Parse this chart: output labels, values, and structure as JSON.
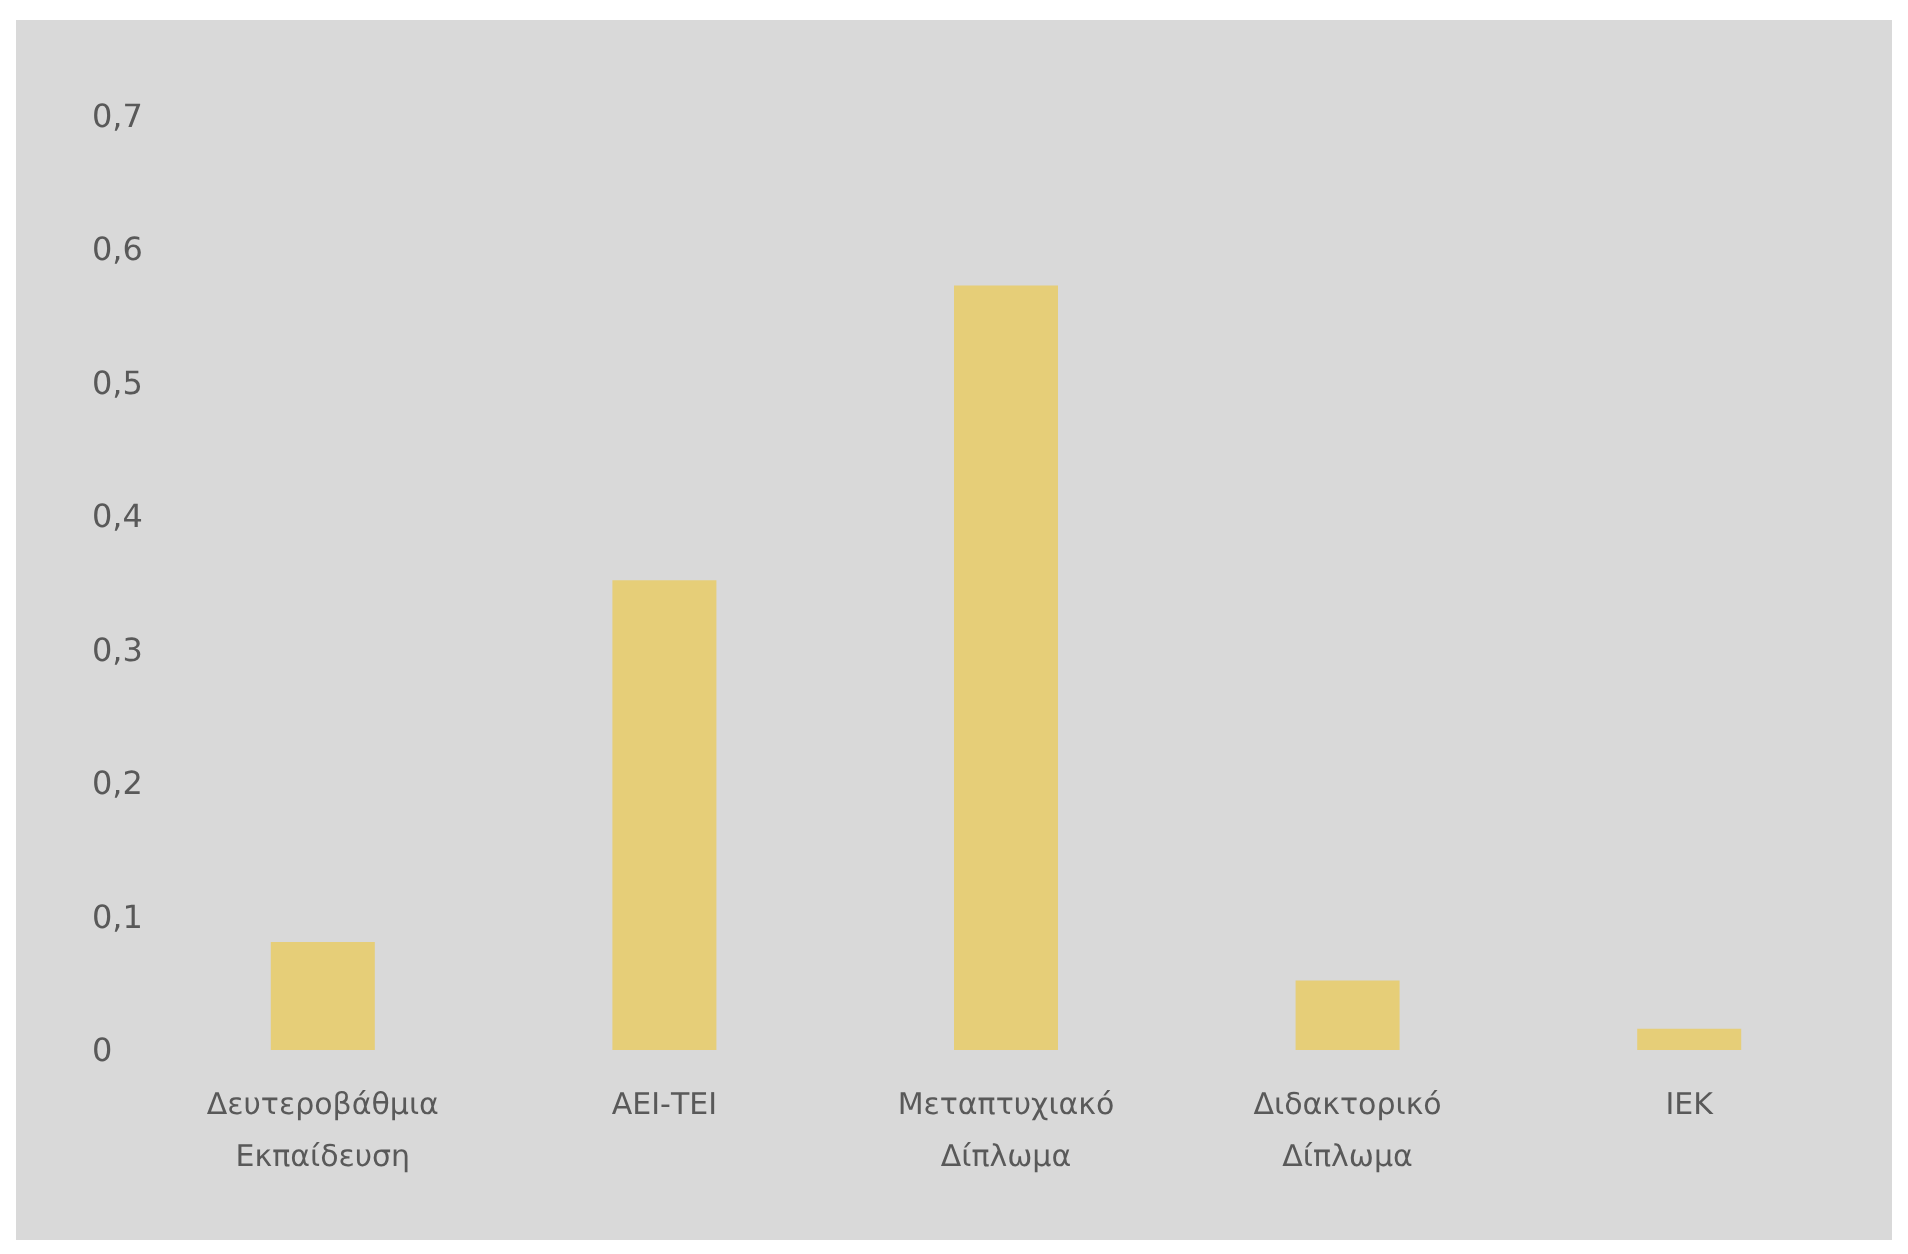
{
  "chart_data": {
    "type": "bar",
    "categories": [
      "Δευτεροβάθμια Εκπαίδευση",
      "ΑΕΙ-ΤΕΙ",
      "Μεταπτυχιακό Δίπλωμα",
      "Διδακτορικό Δίπλωμα",
      "ΙΕΚ"
    ],
    "values": [
      0.081,
      0.352,
      0.573,
      0.052,
      0.016
    ],
    "color": "#e6ce78",
    "ylim": [
      0,
      0.7
    ],
    "yticks": [
      0,
      {
        "value": 0.1,
        "label": "0,1"
      },
      {
        "value": 0.2,
        "label": "0,2"
      },
      {
        "value": 0.3,
        "label": "0,3"
      },
      {
        "value": 0.4,
        "label": "0,4"
      },
      {
        "value": 0.5,
        "label": "0,5"
      },
      {
        "value": 0.6,
        "label": "0,6"
      },
      {
        "value": 0.7,
        "label": "0,7"
      }
    ],
    "grid": false
  }
}
